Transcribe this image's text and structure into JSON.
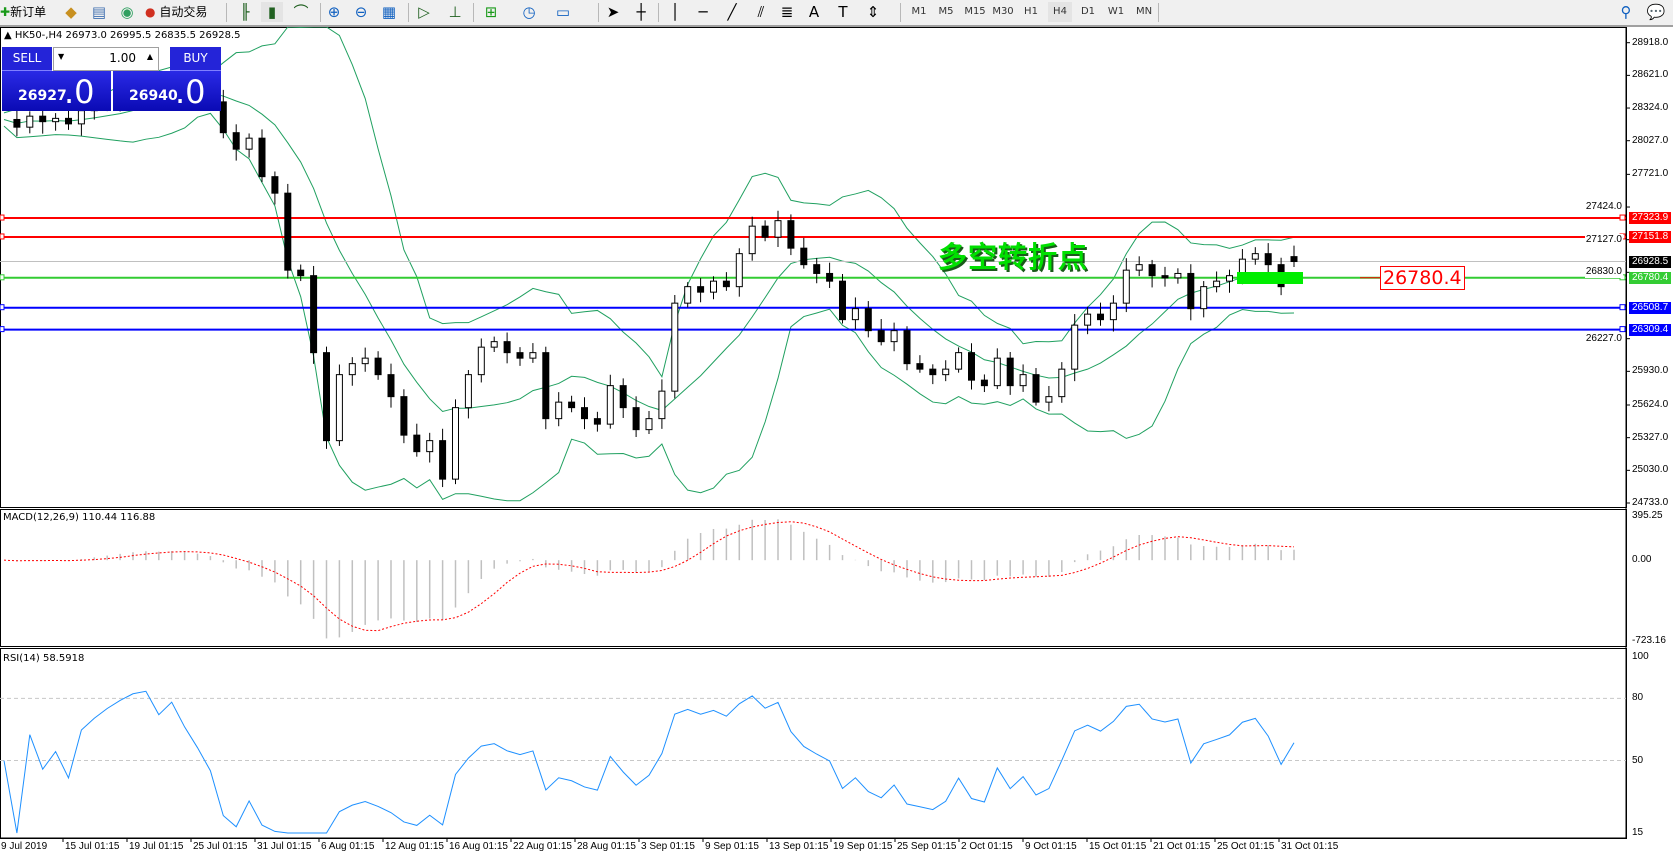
{
  "toolbar": {
    "new_order": "新订单",
    "auto_trading": "自动交易",
    "timeframes": [
      "M1",
      "M5",
      "M15",
      "M30",
      "H1",
      "H4",
      "D1",
      "W1",
      "MN"
    ],
    "active_timeframe": "H4",
    "icons": [
      "new-order-icon",
      "market-watch-icon",
      "navigator-icon",
      "signals-icon",
      "auto-trading-icon",
      "bar-chart-icon",
      "candlestick-icon",
      "line-chart-icon",
      "zoom-in-icon",
      "zoom-out-icon",
      "tile-windows-icon",
      "auto-scroll-icon",
      "chart-shift-icon",
      "indicators-icon",
      "periods-icon",
      "templates-icon",
      "cursor-icon",
      "crosshair-icon",
      "vertical-line-icon",
      "horizontal-line-icon",
      "trendline-icon",
      "equidistant-channel-icon",
      "fibonacci-icon",
      "text-icon",
      "text-label-icon",
      "arrows-icon",
      "search-icon",
      "chat-icon"
    ]
  },
  "chart_header": "HK50-,H4  26973.0 26995.5 26835.5 26928.5",
  "trade_panel": {
    "sell_label": "SELL",
    "buy_label": "BUY",
    "lot": "1.00",
    "sell_small": "26927",
    "sell_big": ".0",
    "buy_small": "26940",
    "buy_big": ".0"
  },
  "annotation": "多空转折点",
  "price_label": "26780.4",
  "colors": {
    "resistance": "#ff0000",
    "pivot": "#33cc33",
    "support": "#0000ff",
    "bid": "#c0c0c0",
    "bands": "#20a060",
    "rsi": "#1e90ff",
    "macd_signal": "#ff0000",
    "macd_hist": "#c0c0c0"
  },
  "chart_data": {
    "type": "candlestick",
    "symbol": "HK50-",
    "timeframe": "H4",
    "last_candle": {
      "open": 26973.0,
      "high": 26995.5,
      "low": 26835.5,
      "close": 26928.5
    },
    "closes": [
      28220,
      28150,
      28250,
      28200,
      28230,
      28180,
      28300,
      28350,
      28400,
      28450,
      28500,
      28520,
      28480,
      28550,
      28500,
      28450,
      28380,
      28100,
      27950,
      28050,
      27700,
      27550,
      26850,
      26800,
      26100,
      25300,
      25900,
      26000,
      26050,
      25900,
      25700,
      25350,
      25200,
      25300,
      24950,
      25600,
      25900,
      26150,
      26200,
      26100,
      26050,
      26100,
      25500,
      25650,
      25600,
      25500,
      25450,
      25800,
      25600,
      25400,
      25500,
      25750,
      26550,
      26700,
      26650,
      26750,
      26700,
      27000,
      27250,
      27150,
      27300,
      27050,
      26900,
      26820,
      26750,
      26400,
      26500,
      26300,
      26200,
      26300,
      26000,
      25950,
      25900,
      25950,
      26100,
      25850,
      25800,
      26050,
      25800,
      25900,
      25650,
      25700,
      25950,
      26350,
      26450,
      26400,
      26550,
      26850,
      26900,
      26800,
      26780,
      26820,
      26500,
      26700,
      26750,
      26800,
      26950,
      27000,
      26900,
      26700,
      26928.5
    ],
    "ylim": [
      24733.0,
      28918.0
    ],
    "y_ticks": [
      "28918.0",
      "28621.0",
      "28324.0",
      "28027.0",
      "27721.0",
      "27424.0",
      "27127.0",
      "26830.0",
      "26227.0",
      "25930.0",
      "25624.0",
      "25327.0",
      "25030.0",
      "24733.0"
    ],
    "x_ticks": [
      "9 Jul 2019",
      "15 Jul 01:15",
      "19 Jul 01:15",
      "25 Jul 01:15",
      "31 Jul 01:15",
      "6 Aug 01:15",
      "12 Aug 01:15",
      "16 Aug 01:15",
      "22 Aug 01:15",
      "28 Aug 01:15",
      "3 Sep 01:15",
      "9 Sep 01:15",
      "13 Sep 01:15",
      "19 Sep 01:15",
      "25 Sep 01:15",
      "2 Oct 01:15",
      "9 Oct 01:15",
      "15 Oct 01:15",
      "21 Oct 01:15",
      "25 Oct 01:15",
      "31 Oct 01:15"
    ],
    "horizontal_lines": [
      {
        "value": 27323.9,
        "label": "27323.9",
        "color": "#ff0000"
      },
      {
        "value": 27151.8,
        "label": "27151.8",
        "color": "#ff0000"
      },
      {
        "value": 26928.5,
        "label": "26928.5",
        "color": "#000000"
      },
      {
        "value": 26780.4,
        "label": "26780.4",
        "color": "#33cc33"
      },
      {
        "value": 26508.7,
        "label": "26508.7",
        "color": "#0000ff"
      },
      {
        "value": 26309.4,
        "label": "26309.4",
        "color": "#0000ff"
      }
    ],
    "bollinger": true,
    "macd": {
      "label": "MACD(12,26,9) 110.44 116.88",
      "main": 110.44,
      "signal": 116.88,
      "ylim": [
        -723.16,
        395.25
      ],
      "y_ticks": [
        "395.25",
        "0.00",
        "-723.16"
      ]
    },
    "rsi": {
      "label": "RSI(14) 58.5918",
      "value": 58.5918,
      "ylim": [
        0,
        100
      ],
      "y_ticks": [
        "100",
        "80",
        "50",
        "15"
      ],
      "levels": [
        80,
        50
      ]
    }
  }
}
